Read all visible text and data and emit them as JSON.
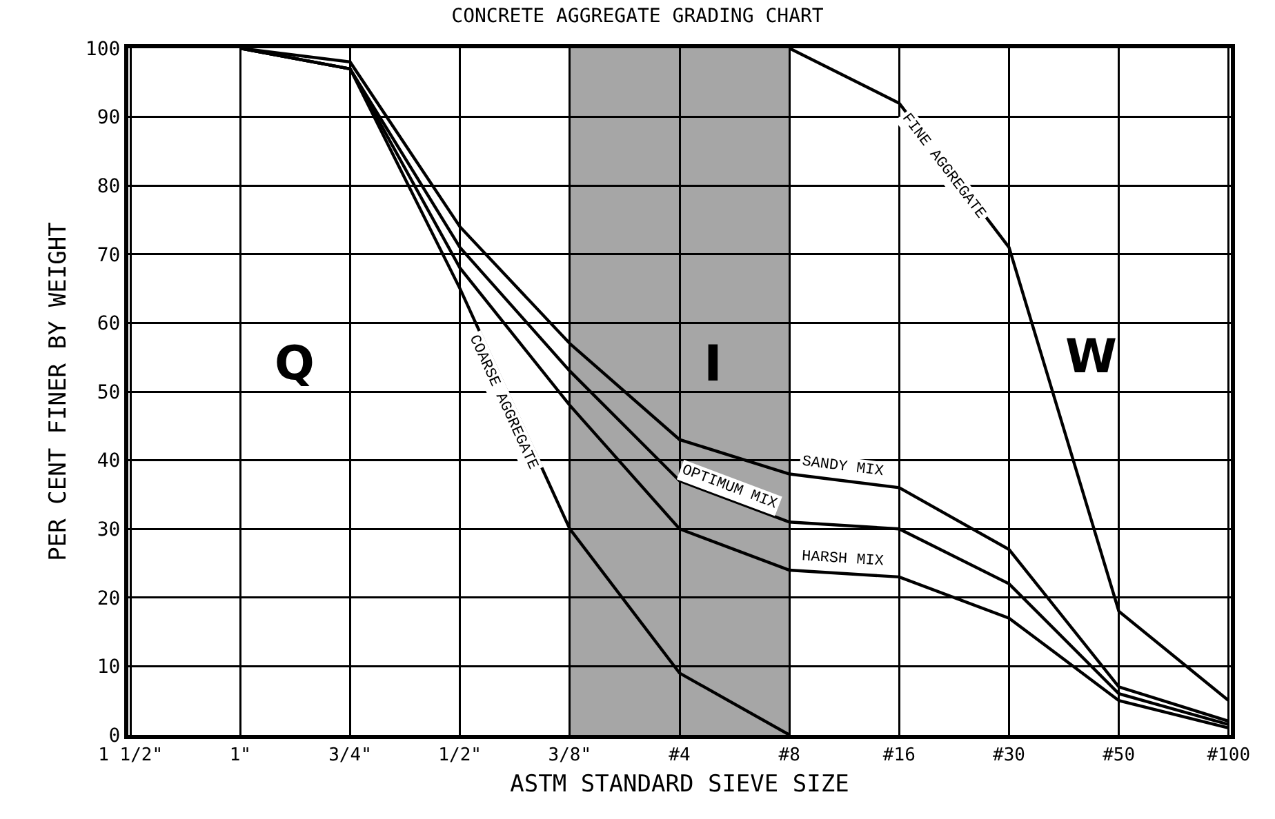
{
  "chart_data": {
    "type": "line",
    "title": "CONCRETE AGGREGATE GRADING CHART",
    "xlabel": "ASTM STANDARD SIEVE SIZE",
    "ylabel": "PER CENT FINER BY WEIGHT",
    "categories": [
      "1 1/2\"",
      "1\"",
      "3/4\"",
      "1/2\"",
      "3/8\"",
      "#4",
      "#8",
      "#16",
      "#30",
      "#50",
      "#100"
    ],
    "ylim": [
      0,
      100
    ],
    "yticks": [
      0,
      10,
      20,
      30,
      40,
      50,
      60,
      70,
      80,
      90,
      100
    ],
    "grid": true,
    "line_style": "solid",
    "series": [
      {
        "color": "#000000",
        "values": [
          null,
          100,
          97,
          65,
          30,
          9,
          0,
          null,
          null,
          null,
          null
        ]
      },
      {
        "color": "#000000",
        "values": [
          null,
          null,
          null,
          null,
          null,
          null,
          100,
          92,
          71,
          18,
          5
        ]
      },
      {
        "color": "#000000",
        "values": [
          null,
          100,
          98,
          74,
          57,
          43,
          38,
          36,
          27,
          7,
          2
        ]
      },
      {
        "color": "#000000",
        "values": [
          null,
          100,
          97,
          71,
          53,
          37,
          31,
          30,
          22,
          6,
          1.5
        ]
      },
      {
        "color": "#000000",
        "values": [
          null,
          100,
          97,
          68,
          48,
          30,
          24,
          23,
          17,
          5,
          1
        ]
      }
    ],
    "bands": [
      {
        "axis": "x",
        "from": "3/8\"",
        "to": "#8",
        "label": "I",
        "color": "#a6a6a6"
      }
    ],
    "annotations": [
      "COARSE AGGREGATE",
      "FINE AGGREGATE",
      "SANDY MIX",
      "OPTIMUM MIX",
      "HARSH MIX",
      "Q",
      "W"
    ]
  }
}
